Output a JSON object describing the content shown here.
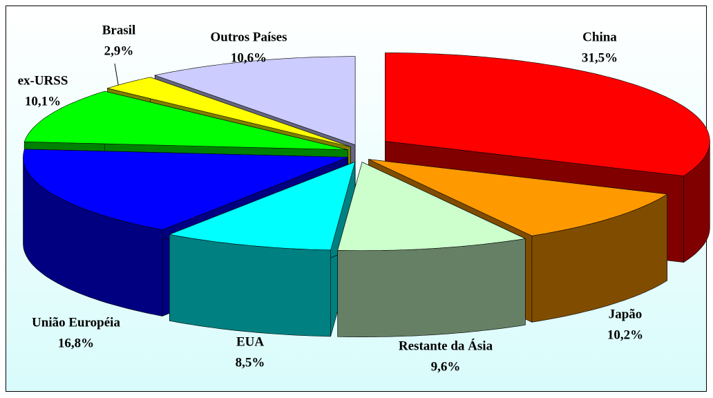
{
  "chart_data": {
    "type": "pie",
    "categories": [
      "China",
      "Japão",
      "Restante da Ásia",
      "EUA",
      "União Européia",
      "ex-URSS",
      "Brasil",
      "Outros Países"
    ],
    "values": [
      31.5,
      10.2,
      9.6,
      8.5,
      16.8,
      10.1,
      2.9,
      10.6
    ],
    "value_labels": [
      "31,5%",
      "10,2%",
      "9,6%",
      "8,5%",
      "16,8%",
      "10,1%",
      "2,9%",
      "10,6%"
    ],
    "colors": [
      "#ff0000",
      "#ff9900",
      "#ccffcc",
      "#00ffff",
      "#0000ff",
      "#00ff00",
      "#ffff00",
      "#ccccff"
    ]
  }
}
